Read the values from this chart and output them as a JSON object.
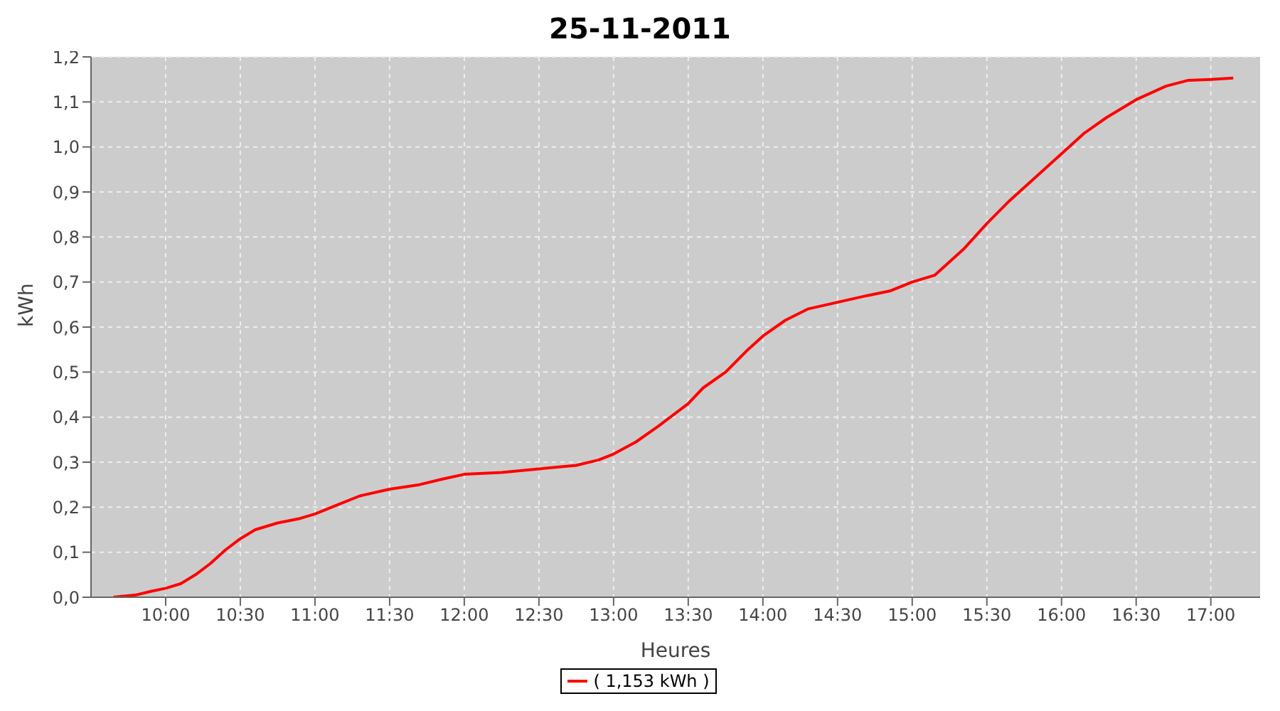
{
  "chart_data": {
    "type": "line",
    "title": "25-11-2011",
    "xlabel": "Heures",
    "ylabel": "kWh",
    "x": [
      9.65,
      9.8,
      9.9,
      10.0,
      10.1,
      10.2,
      10.3,
      10.4,
      10.5,
      10.6,
      10.75,
      10.9,
      11.0,
      11.15,
      11.3,
      11.5,
      11.7,
      11.85,
      12.0,
      12.25,
      12.5,
      12.75,
      12.9,
      13.0,
      13.15,
      13.3,
      13.5,
      13.6,
      13.75,
      13.9,
      14.0,
      14.15,
      14.3,
      14.5,
      14.7,
      14.85,
      15.0,
      15.15,
      15.25,
      15.35,
      15.5,
      15.65,
      15.8,
      16.0,
      16.15,
      16.3,
      16.5,
      16.7,
      16.85,
      17.0,
      17.15
    ],
    "series": [
      {
        "name": "( 1,153 kWh )",
        "color": "#ff0000",
        "values": [
          0,
          0.005,
          0.013,
          0.02,
          0.03,
          0.05,
          0.075,
          0.105,
          0.13,
          0.15,
          0.165,
          0.175,
          0.185,
          0.205,
          0.225,
          0.24,
          0.25,
          0.262,
          0.273,
          0.277,
          0.285,
          0.293,
          0.305,
          0.318,
          0.345,
          0.38,
          0.43,
          0.465,
          0.5,
          0.55,
          0.58,
          0.615,
          0.64,
          0.655,
          0.67,
          0.68,
          0.7,
          0.715,
          0.745,
          0.775,
          0.83,
          0.88,
          0.925,
          0.985,
          1.03,
          1.065,
          1.105,
          1.135,
          1.148,
          1.15,
          1.153
        ]
      }
    ],
    "xlim": [
      9.5,
      17.33
    ],
    "xticks": [
      {
        "value": 10,
        "label": "10:00"
      },
      {
        "value": 10.5,
        "label": "10:30"
      },
      {
        "value": 11,
        "label": "11:00"
      },
      {
        "value": 11.5,
        "label": "11:30"
      },
      {
        "value": 12,
        "label": "12:00"
      },
      {
        "value": 12.5,
        "label": "12:30"
      },
      {
        "value": 13,
        "label": "13:00"
      },
      {
        "value": 13.5,
        "label": "13:30"
      },
      {
        "value": 14,
        "label": "14:00"
      },
      {
        "value": 14.5,
        "label": "14:30"
      },
      {
        "value": 15,
        "label": "15:00"
      },
      {
        "value": 15.5,
        "label": "15:30"
      },
      {
        "value": 16,
        "label": "16:00"
      },
      {
        "value": 16.5,
        "label": "16:30"
      },
      {
        "value": 17,
        "label": "17:00"
      }
    ],
    "ylim": [
      0,
      1.2
    ],
    "yticks": [
      {
        "value": 0,
        "label": "0,0"
      },
      {
        "value": 0.1,
        "label": "0,1"
      },
      {
        "value": 0.2,
        "label": "0,2"
      },
      {
        "value": 0.3,
        "label": "0,3"
      },
      {
        "value": 0.4,
        "label": "0,4"
      },
      {
        "value": 0.5,
        "label": "0,5"
      },
      {
        "value": 0.6,
        "label": "0,6"
      },
      {
        "value": 0.7,
        "label": "0,7"
      },
      {
        "value": 0.8,
        "label": "0,8"
      },
      {
        "value": 0.9,
        "label": "0,9"
      },
      {
        "value": 1.0,
        "label": "1,0"
      },
      {
        "value": 1.1,
        "label": "1,1"
      },
      {
        "value": 1.2,
        "label": "1,2"
      }
    ],
    "grid": true,
    "legend": "bottom"
  }
}
